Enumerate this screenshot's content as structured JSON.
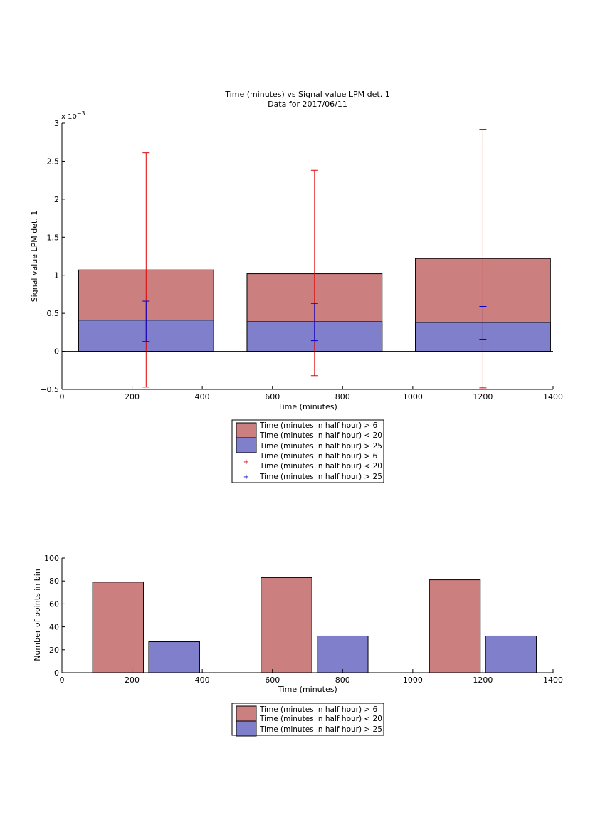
{
  "chart_data": [
    {
      "type": "bar",
      "title": "Time (minutes) vs Signal value LPM det. 1",
      "subtitle": "Data for 2017/06/11",
      "xlabel": "Time (minutes)",
      "ylabel": "Signal value LPM det. 1",
      "y_exponent_label": "x 10",
      "y_exponent_power": "−3",
      "xlim": [
        0,
        1400
      ],
      "ylim": [
        -0.5,
        3
      ],
      "xticks": [
        "0",
        "200",
        "400",
        "600",
        "800",
        "1000",
        "1200",
        "1400"
      ],
      "yticks": [
        "−0.5",
        "0",
        "0.5",
        "1",
        "1.5",
        "2",
        "2.5",
        "3"
      ],
      "x": [
        240,
        720,
        1200
      ],
      "bar_width": 385,
      "series": [
        {
          "name": "Time (minutes in half hour) > 6\nTime (minutes in half hour) < 20",
          "color": "#cc7f7f",
          "values": [
            1.07,
            1.02,
            1.22
          ],
          "error_bars": {
            "color": "#dd0000",
            "lower": [
              -0.47,
              -0.32,
              -0.48
            ],
            "upper": [
              2.61,
              2.38,
              2.92
            ]
          }
        },
        {
          "name": "Time (minutes in half hour) > 25",
          "color": "#7f7fcc",
          "values": [
            0.41,
            0.39,
            0.38
          ],
          "error_bars": {
            "color": "#0000cc",
            "lower": [
              0.13,
              0.14,
              0.16
            ],
            "upper": [
              0.66,
              0.63,
              0.59
            ]
          }
        }
      ],
      "legend": {
        "placement": "below",
        "entries": [
          "Time (minutes in half hour) > 6",
          "Time (minutes in half hour) < 20",
          "Time (minutes in half hour) > 25",
          "Time (minutes in half hour) > 6",
          "Time (minutes in half hour) < 20",
          "Time (minutes in half hour) > 25"
        ]
      }
    },
    {
      "type": "bar",
      "xlabel": "Time (minutes)",
      "ylabel": "Number of points in bin",
      "xlim": [
        0,
        1400
      ],
      "ylim": [
        0,
        100
      ],
      "xticks": [
        "0",
        "200",
        "400",
        "600",
        "800",
        "1000",
        "1200",
        "1400"
      ],
      "yticks": [
        "0",
        "20",
        "40",
        "60",
        "80",
        "100"
      ],
      "series": [
        {
          "name": "Time (minutes in half hour) > 6\nTime (minutes in half hour) < 20",
          "color": "#cc7f7f",
          "x": [
            160,
            640,
            1120
          ],
          "values": [
            79,
            83,
            81
          ]
        },
        {
          "name": "Time (minutes in half hour) > 25",
          "color": "#7f7fcc",
          "x": [
            320,
            800,
            1280
          ],
          "values": [
            27,
            32,
            32
          ]
        }
      ],
      "bar_width": 145,
      "legend": {
        "placement": "below",
        "entries": [
          "Time (minutes in half hour) > 6",
          "Time (minutes in half hour) < 20",
          "Time (minutes in half hour) > 25"
        ]
      }
    }
  ]
}
